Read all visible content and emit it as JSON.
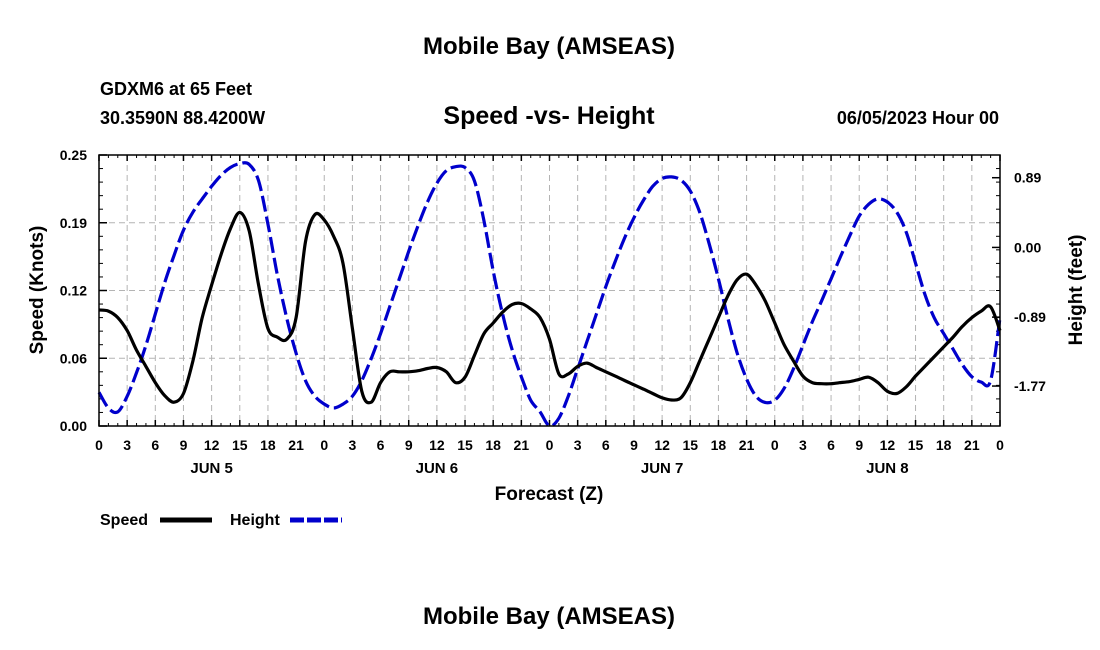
{
  "page": {
    "title_top": "Mobile Bay (AMSEAS)",
    "station": "GDXM6 at 65 Feet",
    "location": "30.3590N  88.4200W",
    "subtitle": "Speed -vs- Height",
    "run_time": "06/05/2023 Hour 00",
    "title_bottom": "Mobile Bay (AMSEAS)"
  },
  "chart_data": {
    "type": "line",
    "title": "Speed -vs- Height",
    "xlabel": "Forecast (Z)",
    "ylabel_left": "Speed (Knots)",
    "ylabel_right": "Height (feet)",
    "x_range": [
      0,
      96
    ],
    "x_tick_step": 3,
    "x_tick_labels": [
      "0",
      "3",
      "6",
      "9",
      "12",
      "15",
      "18",
      "21",
      "0",
      "3",
      "6",
      "9",
      "12",
      "15",
      "18",
      "21",
      "0",
      "3",
      "6",
      "9",
      "12",
      "15",
      "18",
      "21",
      "0",
      "3",
      "6",
      "9",
      "12",
      "15",
      "18",
      "21",
      "0"
    ],
    "day_labels": [
      {
        "label": "JUN 5",
        "hour": 12
      },
      {
        "label": "JUN 6",
        "hour": 36
      },
      {
        "label": "JUN 7",
        "hour": 60
      },
      {
        "label": "JUN 8",
        "hour": 84
      }
    ],
    "y_left": {
      "range": [
        0,
        0.25
      ],
      "ticks": [
        "0.00",
        "0.06",
        "0.12",
        "0.19",
        "0.25"
      ],
      "tick_values": [
        0,
        0.0625,
        0.125,
        0.1875,
        0.25
      ]
    },
    "y_right": {
      "range": [
        -2.28,
        1.18
      ],
      "ticks": [
        "-1.77",
        "-0.89",
        "0.00",
        "0.89"
      ],
      "tick_values": [
        -1.77,
        -0.89,
        0.0,
        0.89
      ]
    },
    "grid": true,
    "series": [
      {
        "name": "Speed",
        "color": "#000000",
        "dash": "solid",
        "axis": "left",
        "x": [
          0,
          1,
          2,
          3,
          4,
          5,
          6,
          7,
          8,
          9,
          10,
          11,
          12,
          13,
          14,
          15,
          16,
          17,
          18,
          19,
          20,
          21,
          22,
          23,
          24,
          25,
          26,
          27,
          28,
          29,
          30,
          31,
          32,
          33,
          34,
          35,
          36,
          37,
          38,
          39,
          40,
          41,
          42,
          43,
          44,
          45,
          46,
          47,
          48,
          49,
          50,
          51,
          52,
          53,
          54,
          55,
          56,
          57,
          58,
          59,
          60,
          61,
          62,
          63,
          64,
          65,
          66,
          67,
          68,
          69,
          70,
          71,
          72,
          73,
          74,
          75,
          76,
          77,
          78,
          79,
          80,
          81,
          82,
          83,
          84,
          85,
          86,
          87,
          88,
          89,
          90,
          91,
          92,
          93,
          94,
          95,
          96
        ],
        "values": [
          0.107,
          0.106,
          0.1,
          0.088,
          0.07,
          0.055,
          0.04,
          0.028,
          0.022,
          0.03,
          0.06,
          0.1,
          0.13,
          0.158,
          0.182,
          0.197,
          0.18,
          0.13,
          0.09,
          0.082,
          0.08,
          0.1,
          0.17,
          0.195,
          0.19,
          0.175,
          0.15,
          0.09,
          0.032,
          0.022,
          0.04,
          0.05,
          0.05,
          0.05,
          0.051,
          0.053,
          0.054,
          0.05,
          0.04,
          0.045,
          0.065,
          0.085,
          0.095,
          0.105,
          0.112,
          0.113,
          0.108,
          0.1,
          0.08,
          0.048,
          0.048,
          0.055,
          0.058,
          0.054,
          0.05,
          0.046,
          0.042,
          0.038,
          0.034,
          0.03,
          0.026,
          0.024,
          0.026,
          0.04,
          0.06,
          0.08,
          0.1,
          0.12,
          0.135,
          0.14,
          0.13,
          0.115,
          0.095,
          0.075,
          0.06,
          0.046,
          0.04,
          0.039,
          0.039,
          0.04,
          0.041,
          0.043,
          0.045,
          0.04,
          0.032,
          0.03,
          0.036,
          0.046,
          0.055,
          0.064,
          0.073,
          0.082,
          0.092,
          0.1,
          0.106,
          0.11,
          0.088
        ]
      },
      {
        "name": "Height",
        "color": "#0000cc",
        "dash": "dashed",
        "axis": "right",
        "x": [
          0,
          1,
          2,
          3,
          4,
          5,
          6,
          7,
          8,
          9,
          10,
          11,
          12,
          13,
          14,
          15,
          16,
          17,
          18,
          19,
          20,
          21,
          22,
          23,
          24,
          25,
          26,
          27,
          28,
          29,
          30,
          31,
          32,
          33,
          34,
          35,
          36,
          37,
          38,
          39,
          40,
          41,
          42,
          43,
          44,
          45,
          46,
          47,
          48,
          49,
          50,
          51,
          52,
          53,
          54,
          55,
          56,
          57,
          58,
          59,
          60,
          61,
          62,
          63,
          64,
          65,
          66,
          67,
          68,
          69,
          70,
          71,
          72,
          73,
          74,
          75,
          76,
          77,
          78,
          79,
          80,
          81,
          82,
          83,
          84,
          85,
          86,
          87,
          88,
          89,
          90,
          91,
          92,
          93,
          94,
          95,
          96
        ],
        "values": [
          -1.85,
          -2.05,
          -2.1,
          -1.9,
          -1.6,
          -1.25,
          -0.85,
          -0.45,
          -0.1,
          0.22,
          0.45,
          0.62,
          0.78,
          0.92,
          1.02,
          1.07,
          1.06,
          0.85,
          0.3,
          -0.35,
          -0.9,
          -1.35,
          -1.7,
          -1.9,
          -2.0,
          -2.05,
          -2.0,
          -1.9,
          -1.7,
          -1.42,
          -1.1,
          -0.75,
          -0.4,
          -0.05,
          0.28,
          0.58,
          0.82,
          0.98,
          1.03,
          1.02,
          0.85,
          0.35,
          -0.3,
          -0.85,
          -1.3,
          -1.65,
          -1.95,
          -2.1,
          -2.28,
          -2.18,
          -1.9,
          -1.55,
          -1.2,
          -0.85,
          -0.5,
          -0.18,
          0.12,
          0.38,
          0.6,
          0.78,
          0.88,
          0.9,
          0.86,
          0.72,
          0.45,
          0.05,
          -0.4,
          -0.9,
          -1.35,
          -1.68,
          -1.9,
          -1.98,
          -1.95,
          -1.8,
          -1.55,
          -1.25,
          -0.95,
          -0.68,
          -0.4,
          -0.12,
          0.15,
          0.4,
          0.55,
          0.62,
          0.58,
          0.45,
          0.2,
          -0.2,
          -0.6,
          -0.9,
          -1.1,
          -1.3,
          -1.5,
          -1.65,
          -1.72,
          -1.7,
          -0.9
        ]
      }
    ],
    "legend": [
      {
        "label": "Speed",
        "color": "#000000",
        "dash": "solid"
      },
      {
        "label": "Height",
        "color": "#0000cc",
        "dash": "dashed"
      }
    ]
  }
}
